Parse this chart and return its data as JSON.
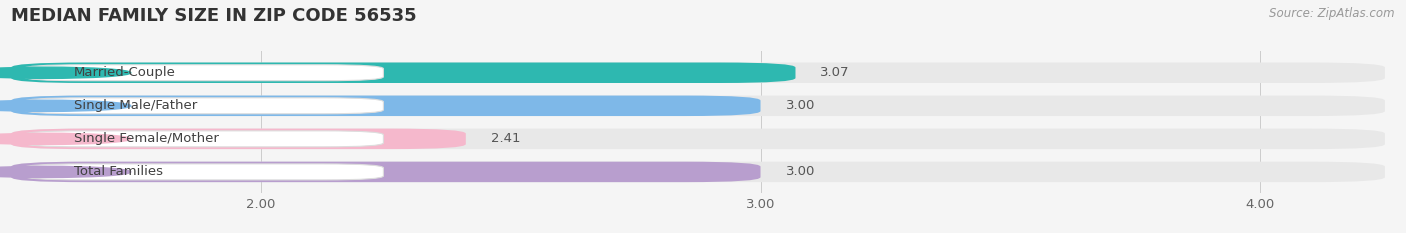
{
  "title": "MEDIAN FAMILY SIZE IN ZIP CODE 56535",
  "source": "Source: ZipAtlas.com",
  "categories": [
    "Married-Couple",
    "Single Male/Father",
    "Single Female/Mother",
    "Total Families"
  ],
  "values": [
    3.07,
    3.0,
    2.41,
    3.0
  ],
  "bar_colors": [
    "#2eb8b0",
    "#7eb8e8",
    "#f5b8cc",
    "#b89ece"
  ],
  "bar_bg_color": "#e8e8e8",
  "xlim": [
    1.5,
    4.25
  ],
  "xstart": 1.5,
  "xticks": [
    2.0,
    3.0,
    4.0
  ],
  "xtick_labels": [
    "2.00",
    "3.00",
    "4.00"
  ],
  "figsize": [
    14.06,
    2.33
  ],
  "dpi": 100,
  "background_color": "#f5f5f5",
  "bar_height": 0.62,
  "label_fontsize": 9.5,
  "title_fontsize": 13,
  "source_fontsize": 8.5,
  "value_fontsize": 9.5,
  "category_fontsize": 9.5
}
